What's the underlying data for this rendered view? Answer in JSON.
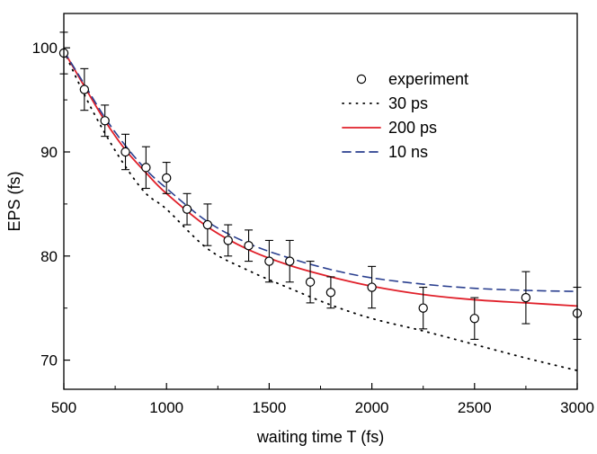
{
  "chart_data": {
    "type": "line",
    "title": "",
    "xlabel": "waiting time T (fs)",
    "ylabel": "EPS (fs)",
    "xlim": [
      500,
      3000
    ],
    "ylim": [
      67.2,
      103.3
    ],
    "xticks": [
      500,
      1000,
      1500,
      2000,
      2500,
      3000
    ],
    "yticks": [
      70,
      80,
      90,
      100
    ],
    "grid": false,
    "legend_position": "top-right",
    "series": [
      {
        "name": "experiment",
        "kind": "scatter_errorbar",
        "color": "#000000",
        "x": [
          500,
          600,
          700,
          800,
          900,
          1000,
          1100,
          1200,
          1300,
          1400,
          1500,
          1600,
          1700,
          1800,
          2000,
          2250,
          2500,
          2750,
          3000
        ],
        "y": [
          99.5,
          96.0,
          93.0,
          90.0,
          88.5,
          87.5,
          84.5,
          83.0,
          81.5,
          81.0,
          79.5,
          79.5,
          77.5,
          76.5,
          77.0,
          75.0,
          74.0,
          76.0,
          74.5
        ],
        "yerr": [
          2.0,
          2.0,
          1.5,
          1.7,
          2.0,
          1.5,
          1.5,
          2.0,
          1.5,
          1.5,
          2.0,
          2.0,
          2.0,
          1.5,
          2.0,
          2.0,
          2.0,
          2.5,
          2.5
        ]
      },
      {
        "name": "30 ps",
        "kind": "line",
        "style": "dotted",
        "color": "#000000",
        "x": [
          500,
          600,
          700,
          800,
          900,
          1000,
          1200,
          1400,
          1600,
          1800,
          2000,
          2250,
          2500,
          2750,
          3000
        ],
        "y": [
          99.7,
          95.5,
          91.8,
          88.6,
          86.0,
          84.5,
          80.7,
          78.6,
          76.9,
          75.3,
          74.0,
          72.8,
          71.5,
          70.2,
          69.0
        ]
      },
      {
        "name": "200 ps",
        "kind": "line",
        "style": "solid",
        "color": "#e0202a",
        "x": [
          500,
          600,
          700,
          800,
          900,
          1000,
          1200,
          1400,
          1600,
          1800,
          2000,
          2250,
          2500,
          2750,
          3000
        ],
        "y": [
          99.7,
          96.3,
          93.0,
          90.2,
          88.0,
          86.0,
          82.8,
          80.6,
          79.1,
          78.0,
          77.1,
          76.3,
          75.8,
          75.5,
          75.2
        ]
      },
      {
        "name": "10 ns",
        "kind": "line",
        "style": "dashed",
        "color": "#2a3f8f",
        "x": [
          500,
          600,
          700,
          800,
          900,
          1000,
          1200,
          1400,
          1600,
          1800,
          2000,
          2250,
          2500,
          2750,
          3000
        ],
        "y": [
          99.7,
          96.5,
          93.3,
          90.6,
          88.3,
          86.5,
          83.3,
          81.2,
          79.8,
          78.7,
          77.9,
          77.3,
          76.9,
          76.7,
          76.6
        ]
      }
    ]
  }
}
